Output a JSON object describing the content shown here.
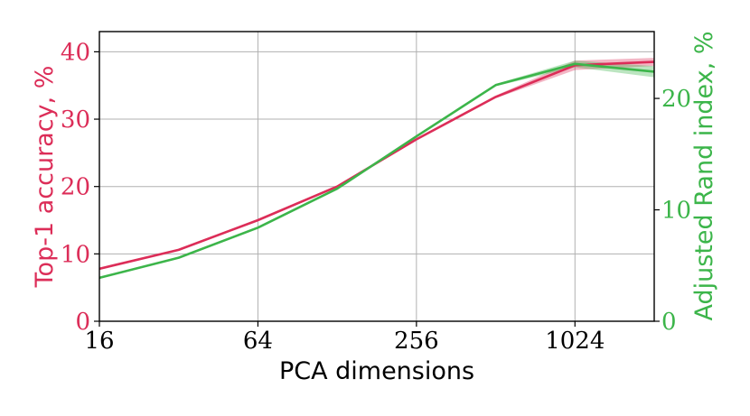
{
  "chart_data": {
    "type": "line",
    "xlabel": "PCA dimensions",
    "x_scale": "log2",
    "xlim": [
      16,
      2048
    ],
    "x_ticks": [
      "16",
      "64",
      "256",
      "1024"
    ],
    "grid": true,
    "left_axis": {
      "label": "Top-1 accuracy, %",
      "ylim": [
        0,
        43
      ],
      "ticks": [
        "0",
        "10",
        "20",
        "30",
        "40"
      ],
      "color": "#dc2d58"
    },
    "right_axis": {
      "label": "Adjusted Rand index, %",
      "ylim": [
        0,
        26
      ],
      "ticks": [
        "0",
        "10",
        "20"
      ],
      "color": "#3cb54a"
    },
    "series": [
      {
        "axis": "left",
        "color": "#dc2d58",
        "x": [
          16,
          32,
          64,
          128,
          256,
          512,
          1024,
          2048
        ],
        "y": [
          7.8,
          10.6,
          15.0,
          20.0,
          27.0,
          33.3,
          38.0,
          38.5
        ],
        "band": [
          0,
          0,
          0,
          0,
          0,
          0.2,
          0.7,
          0.6
        ]
      },
      {
        "axis": "right",
        "color": "#3cb54a",
        "x": [
          16,
          32,
          64,
          128,
          256,
          512,
          1024,
          2048
        ],
        "y": [
          3.9,
          5.7,
          8.4,
          11.9,
          16.6,
          21.2,
          23.1,
          22.4
        ],
        "band": [
          0,
          0,
          0,
          0,
          0,
          0.1,
          0.3,
          0.5
        ]
      }
    ]
  }
}
